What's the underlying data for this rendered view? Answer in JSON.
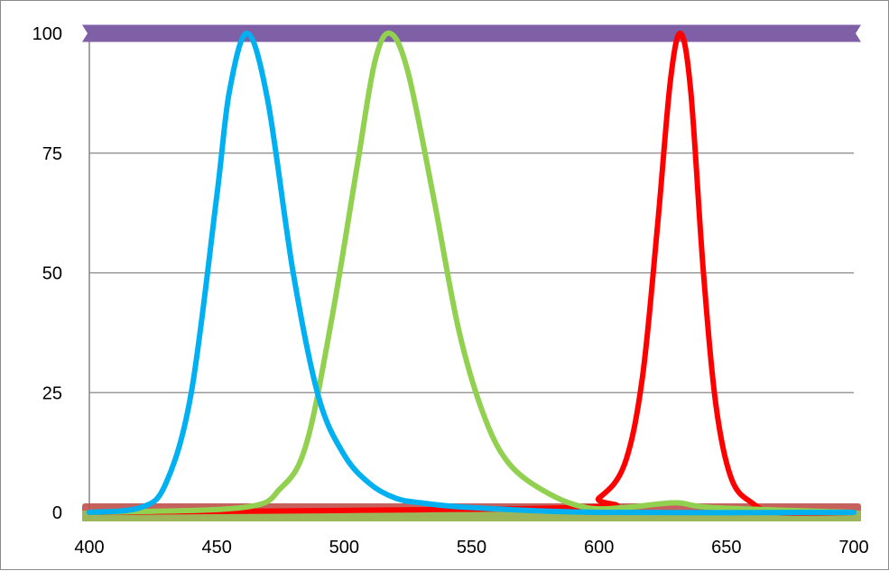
{
  "chart_data": {
    "type": "line",
    "title": "",
    "xlabel": "",
    "ylabel": "",
    "xlim": [
      400,
      700
    ],
    "ylim": [
      0,
      100
    ],
    "x_ticks": [
      400,
      450,
      500,
      550,
      600,
      650,
      700
    ],
    "y_ticks": [
      0,
      25,
      50,
      75,
      100
    ],
    "grid": true,
    "legend": "none",
    "series": [
      {
        "color": "#00b0f0",
        "peak_x": 462,
        "values": [
          {
            "x": 400,
            "y": 0
          },
          {
            "x": 420,
            "y": 1
          },
          {
            "x": 430,
            "y": 6
          },
          {
            "x": 440,
            "y": 25
          },
          {
            "x": 450,
            "y": 66
          },
          {
            "x": 455,
            "y": 88
          },
          {
            "x": 462,
            "y": 100
          },
          {
            "x": 470,
            "y": 86
          },
          {
            "x": 480,
            "y": 50
          },
          {
            "x": 490,
            "y": 24
          },
          {
            "x": 500,
            "y": 12
          },
          {
            "x": 510,
            "y": 6
          },
          {
            "x": 520,
            "y": 3
          },
          {
            "x": 530,
            "y": 2
          },
          {
            "x": 550,
            "y": 1
          },
          {
            "x": 600,
            "y": 0
          },
          {
            "x": 700,
            "y": 0
          }
        ]
      },
      {
        "color": "#92d050",
        "peak_x": 518,
        "values": [
          {
            "x": 400,
            "y": 0
          },
          {
            "x": 460,
            "y": 1
          },
          {
            "x": 475,
            "y": 5
          },
          {
            "x": 485,
            "y": 14
          },
          {
            "x": 495,
            "y": 40
          },
          {
            "x": 505,
            "y": 72
          },
          {
            "x": 512,
            "y": 94
          },
          {
            "x": 518,
            "y": 100
          },
          {
            "x": 525,
            "y": 92
          },
          {
            "x": 535,
            "y": 66
          },
          {
            "x": 545,
            "y": 38
          },
          {
            "x": 555,
            "y": 20
          },
          {
            "x": 565,
            "y": 10
          },
          {
            "x": 580,
            "y": 4
          },
          {
            "x": 595,
            "y": 1
          },
          {
            "x": 610,
            "y": 1
          },
          {
            "x": 630,
            "y": 2
          },
          {
            "x": 645,
            "y": 1
          },
          {
            "x": 700,
            "y": 0
          }
        ]
      },
      {
        "color": "#ff0000",
        "peak_x": 632,
        "values": [
          {
            "x": 400,
            "y": 0
          },
          {
            "x": 590,
            "y": 1
          },
          {
            "x": 600,
            "y": 3
          },
          {
            "x": 610,
            "y": 10
          },
          {
            "x": 617,
            "y": 28
          },
          {
            "x": 623,
            "y": 60
          },
          {
            "x": 628,
            "y": 90
          },
          {
            "x": 632,
            "y": 100
          },
          {
            "x": 636,
            "y": 88
          },
          {
            "x": 641,
            "y": 50
          },
          {
            "x": 646,
            "y": 22
          },
          {
            "x": 652,
            "y": 7
          },
          {
            "x": 660,
            "y": 2
          },
          {
            "x": 670,
            "y": 0
          },
          {
            "x": 700,
            "y": 0
          }
        ]
      },
      {
        "color": "#7f5fa5",
        "band": "top",
        "values": [
          {
            "x": 400,
            "y": 100
          },
          {
            "x": 700,
            "y": 100
          }
        ]
      },
      {
        "color": "#c0504d",
        "band": "bottom",
        "values": [
          {
            "x": 400,
            "y": 0
          },
          {
            "x": 700,
            "y": 0
          }
        ]
      }
    ]
  }
}
